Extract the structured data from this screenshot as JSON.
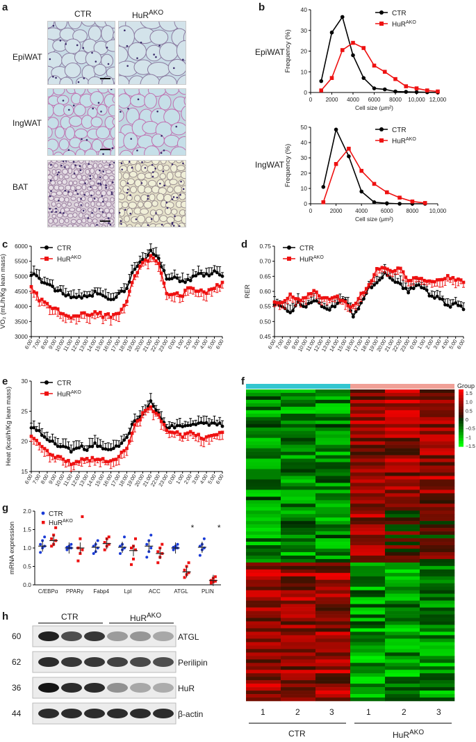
{
  "panels": {
    "a": {
      "letter": "a",
      "columns": [
        "CTR",
        "HuR"
      ],
      "col2_sup": "AKO",
      "rows": [
        "EpiWAT",
        "IngWAT",
        "BAT"
      ]
    },
    "b": {
      "letter": "b",
      "row_labels": [
        "EpiWAT",
        "IngWAT"
      ]
    },
    "c": {
      "letter": "c"
    },
    "d": {
      "letter": "d"
    },
    "e": {
      "letter": "e"
    },
    "f": {
      "letter": "f",
      "legend_title": "Group",
      "legend_ticks": [
        "1.5",
        "1.0",
        "0.5",
        "0",
        "−0.5",
        "−1",
        "−1.5"
      ],
      "lanes": [
        "1",
        "2",
        "3",
        "1",
        "2",
        "3"
      ],
      "group_ctr": "CTR",
      "group_hur": "HuR",
      "group_hur_sup": "AKO",
      "colors": {
        "ctr_bar": "#33c6d0",
        "hur_bar": "#f0a097",
        "high": "#ff0000",
        "low": "#00ff00"
      }
    },
    "g": {
      "letter": "g"
    },
    "h": {
      "letter": "h",
      "group_ctr": "CTR",
      "group_hur": "HuR",
      "group_hur_sup": "AKO",
      "bands": [
        {
          "mw": "60",
          "label": "ATGL"
        },
        {
          "mw": "62",
          "label": "Perilipin"
        },
        {
          "mw": "36",
          "label": "HuR"
        },
        {
          "mw": "44",
          "label": "β-actin"
        }
      ]
    }
  },
  "chart_data": [
    {
      "id": "b-epi",
      "type": "line",
      "xlabel": "Cell size (μm²)",
      "ylabel": "Frequency (%)",
      "xlim": [
        0,
        12000
      ],
      "ylim": [
        0,
        40
      ],
      "xticks": [
        "0",
        "2000",
        "4000",
        "6000",
        "8000",
        "10,000",
        "12,000"
      ],
      "yticks": [
        "0",
        "10",
        "20",
        "30",
        "40"
      ],
      "legend_position": "top-right",
      "colors": {
        "CTR": "#000000",
        "HuR": "#ee1111"
      },
      "series": [
        {
          "name": "CTR",
          "x": [
            1000,
            2000,
            3000,
            4000,
            5000,
            6000,
            7000,
            8000,
            9000,
            10000,
            11000,
            12000
          ],
          "values": [
            5.5,
            29,
            36.5,
            18,
            7,
            2,
            1.5,
            0.5,
            0.3,
            0.2,
            0.1,
            0
          ]
        },
        {
          "name": "HuR",
          "name_sup": "AKO",
          "x": [
            1000,
            2000,
            3000,
            4000,
            5000,
            6000,
            7000,
            8000,
            9000,
            10000,
            11000,
            12000
          ],
          "values": [
            1,
            7,
            20.5,
            24,
            21.5,
            13,
            10,
            6.5,
            3,
            2,
            1,
            0.5
          ]
        }
      ]
    },
    {
      "id": "b-ing",
      "type": "line",
      "xlabel": "Cell size (μm²)",
      "ylabel": "Frequency (%)",
      "xlim": [
        0,
        10000
      ],
      "ylim": [
        0,
        50
      ],
      "xticks": [
        "0",
        "2000",
        "4000",
        "6000",
        "8000",
        "10,000"
      ],
      "yticks": [
        "0",
        "10",
        "20",
        "30",
        "40",
        "50"
      ],
      "legend_position": "top-right",
      "colors": {
        "CTR": "#000000",
        "HuR": "#ee1111"
      },
      "series": [
        {
          "name": "CTR",
          "x": [
            1000,
            2000,
            3000,
            4000,
            5000,
            6000,
            7000,
            8000,
            9000
          ],
          "values": [
            11,
            48.5,
            31,
            8,
            1,
            0.3,
            0,
            0,
            0
          ]
        },
        {
          "name": "HuR",
          "name_sup": "AKO",
          "x": [
            1000,
            2000,
            3000,
            4000,
            5000,
            6000,
            7000,
            8000,
            9000
          ],
          "values": [
            1,
            26,
            36,
            21.5,
            13,
            7.5,
            4,
            1.5,
            0.5
          ]
        }
      ]
    },
    {
      "id": "c",
      "type": "line",
      "ylabel": "VO₂ (mL/h/Kg lean mass)",
      "ylim": [
        3000,
        6000
      ],
      "yticks": [
        "3000",
        "3500",
        "4000",
        "4500",
        "5000",
        "5500",
        "6000"
      ],
      "x": [
        "6:00",
        "7:00",
        "8:00",
        "9:00",
        "10:00",
        "11:00",
        "12:00",
        "13:00",
        "14:00",
        "15:00",
        "16:00",
        "17:00",
        "18:00",
        "19:00",
        "20:00",
        "21:00",
        "22:00",
        "23:00",
        "0:00",
        "1:00",
        "2:00",
        "3:00",
        "4:00",
        "5:00",
        "6:00"
      ],
      "legend_position": "top-left",
      "colors": {
        "CTR": "#000000",
        "HuR": "#ee1111"
      },
      "series": [
        {
          "name": "CTR",
          "values": [
            5050,
            4950,
            4700,
            4550,
            4450,
            4300,
            4350,
            4300,
            4450,
            4350,
            4250,
            4400,
            4600,
            5300,
            5500,
            5800,
            5600,
            4950,
            4950,
            4850,
            4900,
            5100,
            5050,
            5150,
            5000
          ]
        },
        {
          "name": "HuR",
          "name_sup": "AKO",
          "values": [
            4650,
            4250,
            4100,
            3950,
            3750,
            3650,
            3700,
            3750,
            3800,
            3700,
            3700,
            3800,
            4200,
            5000,
            5400,
            5650,
            5400,
            4450,
            4450,
            4400,
            4650,
            4500,
            4450,
            4600,
            4800
          ]
        }
      ]
    },
    {
      "id": "d",
      "type": "line",
      "ylabel": "RER",
      "ylim": [
        0.45,
        0.75
      ],
      "yticks": [
        "0.45",
        "0.50",
        "0.55",
        "0.60",
        "0.65",
        "0.70",
        "0.75"
      ],
      "x": [
        "6:00",
        "7:00",
        "8:00",
        "9:00",
        "10:00",
        "11:00",
        "12:00",
        "13:00",
        "14:00",
        "15:00",
        "16:00",
        "17:00",
        "18:00",
        "19:00",
        "20:00",
        "21:00",
        "22:00",
        "23:00",
        "0:00",
        "1:00",
        "2:00",
        "3:00",
        "4:00",
        "5:00",
        "6:00"
      ],
      "legend_position": "top-left",
      "colors": {
        "CTR": "#000000",
        "HuR": "#ee1111"
      },
      "series": [
        {
          "name": "CTR",
          "values": [
            0.56,
            0.55,
            0.53,
            0.56,
            0.55,
            0.57,
            0.55,
            0.54,
            0.56,
            0.57,
            0.52,
            0.56,
            0.61,
            0.63,
            0.66,
            0.64,
            0.62,
            0.6,
            0.62,
            0.61,
            0.58,
            0.58,
            0.55,
            0.56,
            0.54
          ]
        },
        {
          "name": "HuR",
          "name_sup": "AKO",
          "values": [
            0.57,
            0.56,
            0.59,
            0.57,
            0.58,
            0.6,
            0.58,
            0.57,
            0.58,
            0.56,
            0.55,
            0.59,
            0.62,
            0.67,
            0.68,
            0.67,
            0.68,
            0.63,
            0.65,
            0.64,
            0.63,
            0.64,
            0.65,
            0.64,
            0.63
          ]
        }
      ]
    },
    {
      "id": "e",
      "type": "line",
      "ylabel": "Heat (kcal/h/Kg lean mass)",
      "ylim": [
        15,
        30
      ],
      "yticks": [
        "15",
        "20",
        "25",
        "30"
      ],
      "x": [
        "6:00",
        "7:00",
        "8:00",
        "9:00",
        "10:00",
        "11:00",
        "12:00",
        "13:00",
        "14:00",
        "15:00",
        "16:00",
        "17:00",
        "18:00",
        "19:00",
        "20:00",
        "21:00",
        "22:00",
        "23:00",
        "0:00",
        "1:00",
        "2:00",
        "3:00",
        "4:00",
        "5:00",
        "6:00"
      ],
      "legend_position": "top-left",
      "colors": {
        "CTR": "#000000",
        "HuR": "#ee1111"
      },
      "series": [
        {
          "name": "CTR",
          "values": [
            22.5,
            21.5,
            20.5,
            19.5,
            19.0,
            18.5,
            19.0,
            18.8,
            19.5,
            19.0,
            18.5,
            19.5,
            20.5,
            23.5,
            24.5,
            26.5,
            24.5,
            22.5,
            22.5,
            22.3,
            22.8,
            23.0,
            22.8,
            23.3,
            22.5
          ]
        },
        {
          "name": "HuR",
          "name_sup": "AKO",
          "values": [
            21.0,
            19.5,
            18.5,
            17.5,
            17.0,
            16.5,
            16.8,
            17.0,
            17.2,
            16.8,
            16.5,
            17.5,
            19.0,
            22.5,
            24.5,
            25.5,
            24.5,
            21.5,
            21.5,
            21.0,
            21.5,
            21.0,
            20.5,
            21.0,
            21.5
          ]
        }
      ]
    },
    {
      "id": "g",
      "type": "scatter",
      "ylabel": "mRNA expression",
      "ylim": [
        0,
        2.0
      ],
      "yticks": [
        "0.0",
        "0.5",
        "1.0",
        "1.5",
        "2.0"
      ],
      "categories": [
        "C/EBPα",
        "PPARγ",
        "Fabp4",
        "Lpl",
        "ACC",
        "ATGL",
        "PLIN"
      ],
      "legend_position": "top-left",
      "colors": {
        "CTR": "#1a3bd6",
        "HuR": "#ee1111"
      },
      "series": [
        {
          "name": "CTR",
          "values": [
            1.05,
            1.0,
            1.02,
            1.02,
            1.05,
            1.0,
            1.02
          ],
          "points": [
            [
              0.88,
              1.0,
              1.05,
              1.1,
              1.2,
              1.3
            ],
            [
              0.95,
              1.0,
              1.0,
              1.02,
              1.05,
              1.1
            ],
            [
              0.85,
              0.9,
              1.0,
              1.05,
              1.1,
              1.2
            ],
            [
              0.85,
              0.95,
              1.0,
              1.05,
              1.1,
              1.3
            ],
            [
              0.75,
              0.9,
              1.0,
              1.1,
              1.2,
              1.35
            ],
            [
              0.95,
              1.0,
              1.0,
              1.02,
              1.05,
              1.1
            ],
            [
              0.8,
              0.95,
              1.0,
              1.05,
              1.1,
              1.25
            ]
          ]
        },
        {
          "name": "HuR",
          "name_sup": "AKO",
          "values": [
            1.2,
            1.0,
            1.12,
            0.93,
            0.85,
            0.35,
            0.12
          ],
          "points": [
            [
              1.05,
              1.1,
              1.2,
              1.25,
              1.35,
              1.55
            ],
            [
              0.65,
              0.85,
              0.95,
              1.0,
              1.25,
              1.85
            ],
            [
              0.95,
              1.05,
              1.1,
              1.15,
              1.25,
              1.3
            ],
            [
              0.55,
              0.7,
              0.95,
              1.0,
              1.05,
              1.25
            ],
            [
              0.6,
              0.75,
              0.85,
              0.9,
              1.0,
              1.1
            ],
            [
              0.2,
              0.28,
              0.33,
              0.4,
              0.5,
              0.6
            ],
            [
              0.05,
              0.08,
              0.1,
              0.12,
              0.18,
              0.22
            ]
          ]
        }
      ],
      "annotations": [
        {
          "category": "ATGL",
          "text": "*"
        },
        {
          "category": "PLIN",
          "text": "*"
        }
      ]
    },
    {
      "id": "f",
      "type": "heatmap",
      "columns": 6,
      "values_note": "z-score, CTR lanes 1-3 then HuR lanes 1-3"
    }
  ]
}
